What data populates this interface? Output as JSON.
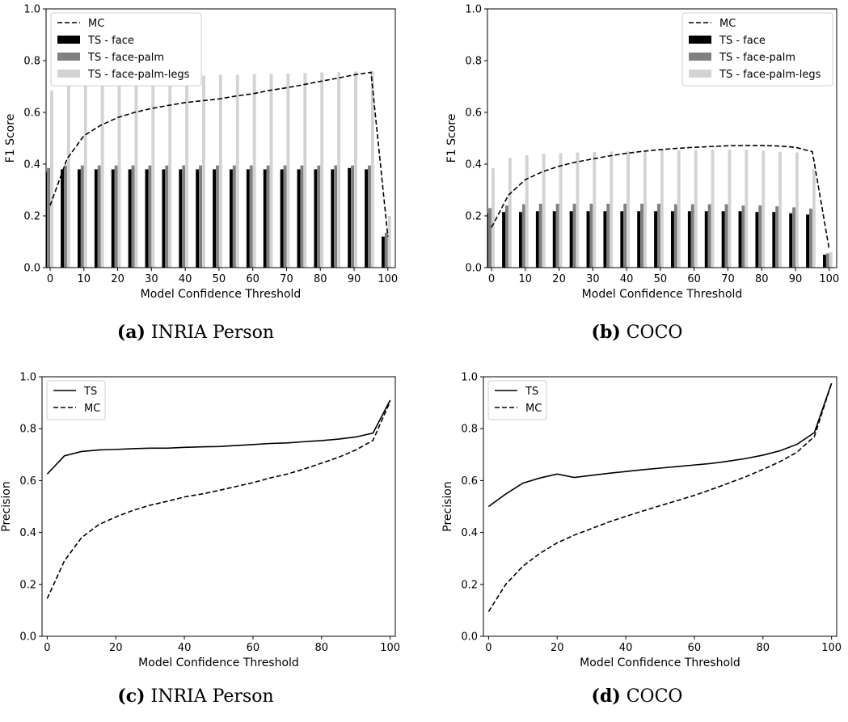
{
  "chart_data": [
    {
      "type": "bar",
      "xlabel": "Model Confidence Threshold",
      "ylabel": "F1 Score",
      "ylim": [
        0,
        1
      ],
      "xticks": [
        0,
        10,
        20,
        30,
        40,
        50,
        60,
        70,
        80,
        90,
        100
      ],
      "yticks": [
        0.0,
        0.2,
        0.4,
        0.6,
        0.8,
        1.0
      ],
      "legend_position": "top-left",
      "caption_label": "(a)",
      "caption_text": "INRIA Person",
      "x": [
        0,
        5,
        10,
        15,
        20,
        25,
        30,
        35,
        40,
        45,
        50,
        55,
        60,
        65,
        70,
        75,
        80,
        85,
        90,
        95,
        100
      ],
      "series": [
        {
          "name": "MC",
          "kind": "line",
          "style": "dashed",
          "color": "#000000",
          "values": [
            0.24,
            0.42,
            0.51,
            0.55,
            0.58,
            0.6,
            0.615,
            0.627,
            0.638,
            0.645,
            0.652,
            0.663,
            0.672,
            0.685,
            0.695,
            0.707,
            0.72,
            0.732,
            0.745,
            0.755,
            0.12
          ]
        },
        {
          "name": "TS - face",
          "kind": "bar",
          "color": "#000000",
          "values": [
            0.37,
            0.38,
            0.38,
            0.38,
            0.38,
            0.38,
            0.38,
            0.38,
            0.38,
            0.38,
            0.38,
            0.38,
            0.38,
            0.38,
            0.38,
            0.38,
            0.38,
            0.38,
            0.385,
            0.38,
            0.12
          ]
        },
        {
          "name": "TS - face-palm",
          "kind": "bar",
          "color": "#808080",
          "values": [
            0.385,
            0.395,
            0.395,
            0.395,
            0.395,
            0.395,
            0.395,
            0.395,
            0.395,
            0.395,
            0.395,
            0.395,
            0.395,
            0.395,
            0.395,
            0.395,
            0.395,
            0.395,
            0.395,
            0.395,
            0.135
          ]
        },
        {
          "name": "TS - face-palm-legs",
          "kind": "bar",
          "color": "#d3d3d3",
          "values": [
            0.685,
            0.73,
            0.73,
            0.735,
            0.735,
            0.735,
            0.74,
            0.74,
            0.74,
            0.742,
            0.745,
            0.745,
            0.748,
            0.75,
            0.75,
            0.752,
            0.755,
            0.755,
            0.758,
            0.76,
            0.2
          ]
        }
      ]
    },
    {
      "type": "bar",
      "xlabel": "Model Confidence Threshold",
      "ylabel": "F1 Score",
      "ylim": [
        0,
        1
      ],
      "xticks": [
        0,
        10,
        20,
        30,
        40,
        50,
        60,
        70,
        80,
        90,
        100
      ],
      "yticks": [
        0.0,
        0.2,
        0.4,
        0.6,
        0.8,
        1.0
      ],
      "legend_position": "top-right",
      "caption_label": "(b)",
      "caption_text": "COCO",
      "x": [
        0,
        5,
        10,
        15,
        20,
        25,
        30,
        35,
        40,
        45,
        50,
        55,
        60,
        65,
        70,
        75,
        80,
        85,
        90,
        95,
        100
      ],
      "series": [
        {
          "name": "MC",
          "kind": "line",
          "style": "dashed",
          "color": "#000000",
          "values": [
            0.155,
            0.28,
            0.34,
            0.37,
            0.392,
            0.408,
            0.42,
            0.432,
            0.442,
            0.45,
            0.456,
            0.461,
            0.465,
            0.468,
            0.471,
            0.472,
            0.472,
            0.47,
            0.465,
            0.448,
            0.07
          ]
        },
        {
          "name": "TS - face",
          "kind": "bar",
          "color": "#000000",
          "values": [
            0.21,
            0.215,
            0.215,
            0.218,
            0.218,
            0.218,
            0.218,
            0.218,
            0.218,
            0.218,
            0.218,
            0.218,
            0.218,
            0.218,
            0.218,
            0.218,
            0.215,
            0.215,
            0.21,
            0.205,
            0.05
          ]
        },
        {
          "name": "TS - face-palm",
          "kind": "bar",
          "color": "#808080",
          "values": [
            0.23,
            0.24,
            0.245,
            0.247,
            0.247,
            0.247,
            0.247,
            0.247,
            0.247,
            0.247,
            0.247,
            0.245,
            0.245,
            0.245,
            0.245,
            0.24,
            0.24,
            0.237,
            0.233,
            0.228,
            0.055
          ]
        },
        {
          "name": "TS - face-palm-legs",
          "kind": "bar",
          "color": "#d3d3d3",
          "values": [
            0.385,
            0.425,
            0.435,
            0.44,
            0.443,
            0.445,
            0.447,
            0.449,
            0.45,
            0.452,
            0.453,
            0.454,
            0.455,
            0.456,
            0.456,
            0.456,
            0.452,
            0.448,
            0.445,
            0.38,
            0.06
          ]
        }
      ]
    },
    {
      "type": "line",
      "xlabel": "Model Confidence Threshold",
      "ylabel": "Precision",
      "ylim": [
        0,
        1
      ],
      "xticks": [
        0,
        20,
        40,
        60,
        80,
        100
      ],
      "yticks": [
        0.0,
        0.2,
        0.4,
        0.6,
        0.8,
        1.0
      ],
      "legend_position": "top-left",
      "caption_label": "(c)",
      "caption_text": "INRIA Person",
      "x": [
        0,
        5,
        10,
        15,
        20,
        25,
        30,
        35,
        40,
        45,
        50,
        55,
        60,
        65,
        70,
        75,
        80,
        85,
        90,
        95,
        100
      ],
      "series": [
        {
          "name": "TS",
          "kind": "line",
          "style": "solid",
          "color": "#000000",
          "values": [
            0.625,
            0.695,
            0.712,
            0.718,
            0.72,
            0.723,
            0.725,
            0.725,
            0.728,
            0.73,
            0.731,
            0.735,
            0.739,
            0.743,
            0.745,
            0.75,
            0.754,
            0.76,
            0.768,
            0.783,
            0.91
          ]
        },
        {
          "name": "MC",
          "kind": "line",
          "style": "dashed",
          "color": "#000000",
          "values": [
            0.145,
            0.29,
            0.38,
            0.43,
            0.46,
            0.485,
            0.505,
            0.52,
            0.537,
            0.548,
            0.562,
            0.577,
            0.592,
            0.61,
            0.625,
            0.645,
            0.667,
            0.69,
            0.718,
            0.755,
            0.905
          ]
        }
      ]
    },
    {
      "type": "line",
      "xlabel": "Model Confidence Threshold",
      "ylabel": "Precision",
      "ylim": [
        0,
        1
      ],
      "xticks": [
        0,
        20,
        40,
        60,
        80,
        100
      ],
      "yticks": [
        0.0,
        0.2,
        0.4,
        0.6,
        0.8,
        1.0
      ],
      "legend_position": "top-left",
      "caption_label": "(d)",
      "caption_text": "COCO",
      "x": [
        0,
        5,
        10,
        15,
        20,
        25,
        30,
        35,
        40,
        45,
        50,
        55,
        60,
        65,
        70,
        75,
        80,
        85,
        90,
        95,
        100
      ],
      "series": [
        {
          "name": "TS",
          "kind": "line",
          "style": "solid",
          "color": "#000000",
          "values": [
            0.5,
            0.548,
            0.59,
            0.61,
            0.625,
            0.612,
            0.62,
            0.628,
            0.635,
            0.642,
            0.648,
            0.654,
            0.66,
            0.666,
            0.675,
            0.685,
            0.698,
            0.715,
            0.74,
            0.785,
            0.975
          ]
        },
        {
          "name": "MC",
          "kind": "line",
          "style": "dashed",
          "color": "#000000",
          "values": [
            0.095,
            0.2,
            0.27,
            0.32,
            0.36,
            0.39,
            0.415,
            0.44,
            0.462,
            0.483,
            0.503,
            0.523,
            0.543,
            0.566,
            0.59,
            0.615,
            0.643,
            0.673,
            0.71,
            0.77,
            0.975
          ]
        }
      ]
    }
  ]
}
